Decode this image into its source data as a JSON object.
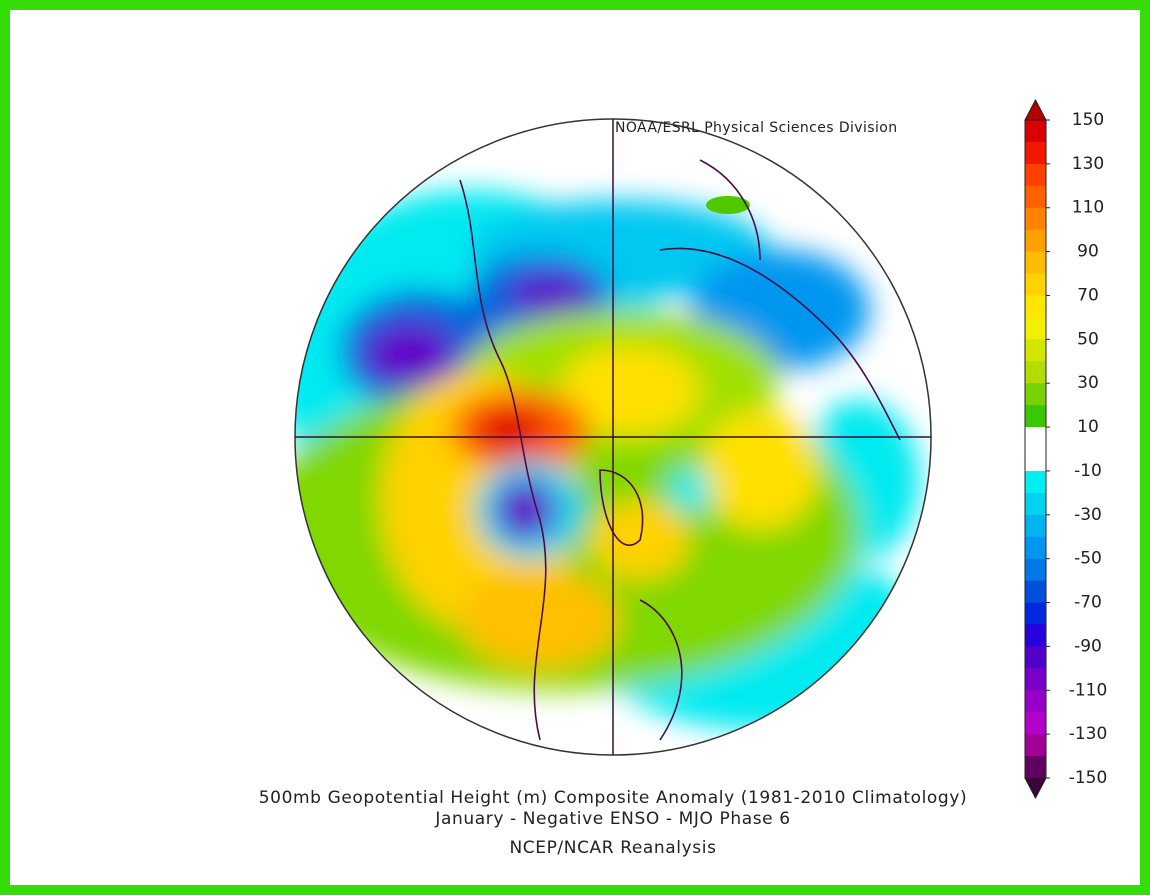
{
  "header": {
    "source": "NOAA/ESRL Physical Sciences Division"
  },
  "footer": {
    "title": "500mb Geopotential Height (m) Composite Anomaly (1981-2010 Climatology)",
    "subtitle": "January - Negative ENSO - MJO Phase 6",
    "dataset": "NCEP/NCAR Reanalysis"
  },
  "colorbar": {
    "labels": [
      150,
      130,
      110,
      90,
      70,
      50,
      30,
      10,
      -10,
      -30,
      -50,
      -70,
      -90,
      -110,
      -130,
      -150
    ],
    "over_color": "#b40000",
    "under_color": "#3c003c",
    "colors": [
      "#d80000",
      "#f01800",
      "#ff4000",
      "#ff6000",
      "#ff8200",
      "#ffa000",
      "#ffbc00",
      "#ffd200",
      "#ffe600",
      "#f0f000",
      "#d2e600",
      "#b4dc00",
      "#78d200",
      "#3cc800",
      "#ffffff",
      "#ffffff",
      "#00f0f0",
      "#00d2f0",
      "#00b4f0",
      "#0096f0",
      "#0078e6",
      "#0050dc",
      "#0028dc",
      "#2800dc",
      "#5000c8",
      "#7800c8",
      "#9600c8",
      "#b400c8",
      "#a00096",
      "#600060"
    ]
  }
}
